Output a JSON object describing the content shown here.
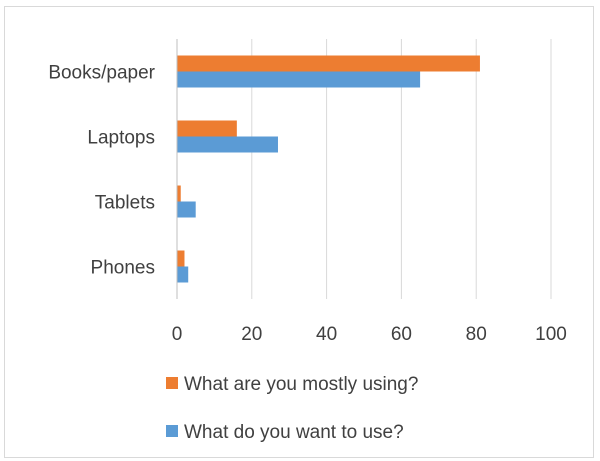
{
  "chart_data": {
    "type": "bar",
    "orientation": "horizontal",
    "categories": [
      "Books/paper",
      "Laptops",
      "Tablets",
      "Phones"
    ],
    "series": [
      {
        "name": "What are you mostly using?",
        "values": [
          81,
          16,
          1,
          2
        ],
        "color": "#ED7D31"
      },
      {
        "name": "What do you want to use?",
        "values": [
          65,
          27,
          5,
          3
        ],
        "color": "#5B9BD5"
      }
    ],
    "xlim": [
      0,
      100
    ],
    "x_ticks": [
      0,
      20,
      40,
      60,
      80,
      100
    ],
    "grid": true,
    "legend_position": "bottom",
    "gridline_color": "#d9d9d9",
    "axis_color": "#bfbfbf",
    "title": "",
    "xlabel": "",
    "ylabel": ""
  }
}
